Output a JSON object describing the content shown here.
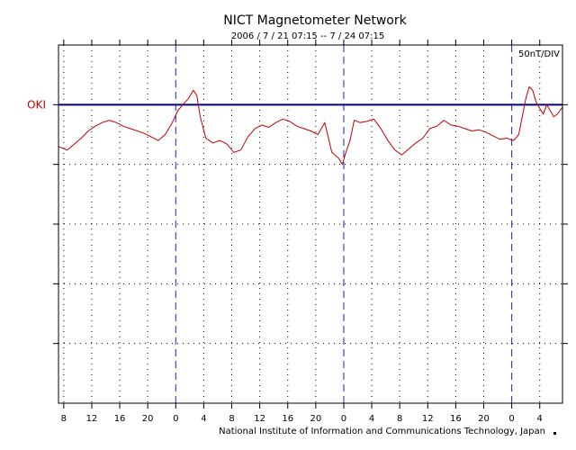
{
  "chart_data": {
    "type": "line",
    "title": "NICT Magnetometer Network",
    "subtitle": "2006 / 7 / 21   07:15 --  7 / 24   07:15",
    "scale_label": "50nT/DIV",
    "footer": "National Institute of Information and Communications Technology, Japan",
    "x_start_hour": 7.25,
    "x_end_hour": 79.25,
    "x_ticks": [
      {
        "hour": 8,
        "label": "8"
      },
      {
        "hour": 12,
        "label": "12"
      },
      {
        "hour": 16,
        "label": "16"
      },
      {
        "hour": 20,
        "label": "20"
      },
      {
        "hour": 24,
        "label": "0"
      },
      {
        "hour": 28,
        "label": "4"
      },
      {
        "hour": 32,
        "label": "8"
      },
      {
        "hour": 36,
        "label": "12"
      },
      {
        "hour": 40,
        "label": "16"
      },
      {
        "hour": 44,
        "label": "20"
      },
      {
        "hour": 48,
        "label": "0"
      },
      {
        "hour": 52,
        "label": "4"
      },
      {
        "hour": 56,
        "label": "8"
      },
      {
        "hour": 60,
        "label": "12"
      },
      {
        "hour": 64,
        "label": "16"
      },
      {
        "hour": 68,
        "label": "20"
      },
      {
        "hour": 72,
        "label": "0"
      },
      {
        "hour": 76,
        "label": "4"
      }
    ],
    "day_boundaries": [
      24,
      48,
      72
    ],
    "y_divisions": 6,
    "y_range_nT": [
      -250,
      50
    ],
    "grid": true,
    "colors": {
      "trace": "#c00000",
      "baseline": "#00008b",
      "day_line": "#2020c0",
      "station_label": "#c00000"
    },
    "series": [
      {
        "name": "OKI",
        "baseline_nT": 0,
        "x": [
          7.25,
          8.5,
          9.5,
          10.5,
          11.5,
          12.5,
          13.5,
          14.5,
          15.5,
          16.5,
          17.5,
          18.5,
          19.5,
          20.5,
          21.5,
          22.5,
          23.5,
          24.3,
          25.0,
          25.8,
          26.5,
          27.0,
          27.5,
          28.3,
          29.3,
          30.3,
          31.3,
          32.3,
          33.3,
          34.3,
          35.3,
          36.3,
          37.3,
          38.3,
          39.3,
          40.3,
          41.3,
          42.3,
          43.3,
          44.3,
          45.3,
          46.3,
          47.3,
          47.8,
          48.3,
          48.9,
          49.5,
          50.3,
          51.3,
          52.3,
          53.3,
          54.3,
          55.3,
          56.3,
          57.3,
          58.3,
          59.3,
          60.3,
          61.3,
          62.3,
          63.3,
          64.3,
          65.3,
          66.3,
          67.3,
          68.3,
          69.3,
          70.3,
          71.3,
          72.3,
          73.0,
          73.5,
          74.0,
          74.5,
          75.0,
          75.5,
          76.0,
          76.5,
          77.0,
          77.5,
          78.0,
          78.5,
          79.25
        ],
        "y": [
          -35,
          -38,
          -33,
          -28,
          -22,
          -18,
          -15,
          -13,
          -15,
          -18,
          -20,
          -22,
          -24,
          -27,
          -30,
          -25,
          -15,
          -5,
          0,
          5,
          12,
          8,
          -10,
          -28,
          -32,
          -30,
          -33,
          -40,
          -38,
          -27,
          -20,
          -17,
          -19,
          -15,
          -12,
          -14,
          -18,
          -20,
          -22,
          -25,
          -15,
          -40,
          -45,
          -50,
          -40,
          -30,
          -13,
          -15,
          -14,
          -12,
          -20,
          -30,
          -38,
          -42,
          -37,
          -32,
          -28,
          -20,
          -18,
          -13,
          -17,
          -18,
          -20,
          -22,
          -21,
          -23,
          -26,
          -29,
          -28,
          -30,
          -25,
          -10,
          5,
          15,
          12,
          2,
          -3,
          -8,
          0,
          -5,
          -10,
          -8,
          -2
        ]
      }
    ]
  }
}
